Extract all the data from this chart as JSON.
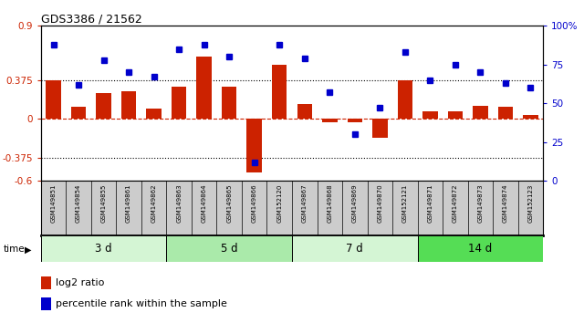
{
  "title": "GDS3386 / 21562",
  "samples": [
    "GSM149851",
    "GSM149854",
    "GSM149855",
    "GSM149861",
    "GSM149862",
    "GSM149863",
    "GSM149864",
    "GSM149865",
    "GSM149866",
    "GSM152120",
    "GSM149867",
    "GSM149868",
    "GSM149869",
    "GSM149870",
    "GSM152121",
    "GSM149871",
    "GSM149872",
    "GSM149873",
    "GSM149874",
    "GSM152123"
  ],
  "log2_ratio": [
    0.375,
    0.12,
    0.25,
    0.27,
    0.1,
    0.31,
    0.6,
    0.31,
    -0.52,
    0.52,
    0.14,
    -0.03,
    -0.03,
    -0.18,
    0.375,
    0.07,
    0.07,
    0.13,
    0.12,
    0.04
  ],
  "percentile": [
    88,
    62,
    78,
    70,
    67,
    85,
    88,
    80,
    12,
    88,
    79,
    57,
    30,
    47,
    83,
    65,
    75,
    70,
    63,
    60
  ],
  "groups": [
    {
      "label": "3 d",
      "start": 0,
      "end": 5,
      "color": "#d4f5d4"
    },
    {
      "label": "5 d",
      "start": 5,
      "end": 10,
      "color": "#aaeaaa"
    },
    {
      "label": "7 d",
      "start": 10,
      "end": 15,
      "color": "#d4f5d4"
    },
    {
      "label": "14 d",
      "start": 15,
      "end": 20,
      "color": "#55dd55"
    }
  ],
  "bar_color": "#cc2200",
  "dot_color": "#0000cc",
  "ref_line_color": "#cc2200",
  "hline_color": "#000000",
  "ylim_left": [
    -0.6,
    0.9
  ],
  "ylim_right": [
    0,
    100
  ],
  "yticks_left": [
    -0.6,
    -0.375,
    0,
    0.375,
    0.9
  ],
  "yticks_right": [
    0,
    25,
    50,
    75,
    100
  ],
  "ytick_labels_left": [
    "-0.6",
    "-0.375",
    "0",
    "0.375",
    "0.9"
  ],
  "ytick_labels_right": [
    "0",
    "25",
    "50",
    "75",
    "100%"
  ],
  "hlines": [
    0.375,
    -0.375
  ],
  "bg_color": "#ffffff",
  "label_bg": "#cccccc"
}
